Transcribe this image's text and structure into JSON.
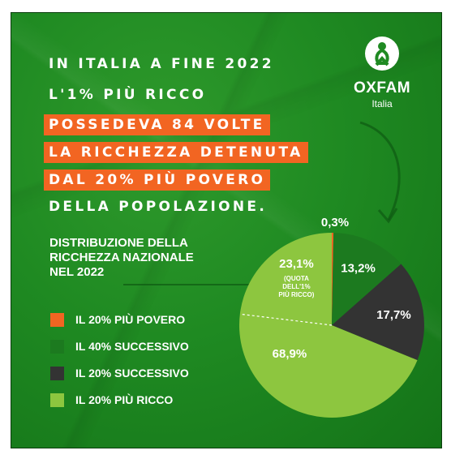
{
  "headline": {
    "lines": [
      {
        "text": "IN ITALIA A FINE 2022",
        "highlight": false
      },
      {
        "text": "L'1% PIÙ RICCO",
        "highlight": false
      },
      {
        "text": "POSSEDEVA 84 VOLTE",
        "highlight": true
      },
      {
        "text": "LA RICCHEZZA DETENUTA",
        "highlight": true
      },
      {
        "text": "DAL 20% PIÙ POVERO",
        "highlight": true
      },
      {
        "text": "DELLA POPOLAZIONE.",
        "highlight": false
      }
    ]
  },
  "logo": {
    "name": "OXFAM",
    "sub": "Italia",
    "icon": "oxfam-person-icon"
  },
  "colors": {
    "background": "#1f8a22",
    "highlight": "#f26522"
  },
  "chart_data": {
    "type": "pie",
    "title_lines": [
      "DISTRIBUZIONE DELLA",
      "RICCHEZZA NAZIONALE",
      "NEL 2022"
    ],
    "series": [
      {
        "name": "IL 20% PIÙ POVERO",
        "value": 0.3,
        "label": "0,3%",
        "color": "#f26522"
      },
      {
        "name": "IL 40% SUCCESSIVO",
        "value": 13.2,
        "label": "13,2%",
        "color": "#1c7a1f"
      },
      {
        "name": "IL 20% SUCCESSIVO",
        "value": 17.7,
        "label": "17,7%",
        "color": "#333333"
      },
      {
        "name": "IL 20% PIÙ RICCO",
        "value": 68.9,
        "label": "68,9%",
        "color": "#8dc63f"
      }
    ],
    "annotation": {
      "value": "23,1%",
      "note": [
        "(QUOTA",
        "DELL'1%",
        "PIÙ RICCO)"
      ]
    }
  }
}
